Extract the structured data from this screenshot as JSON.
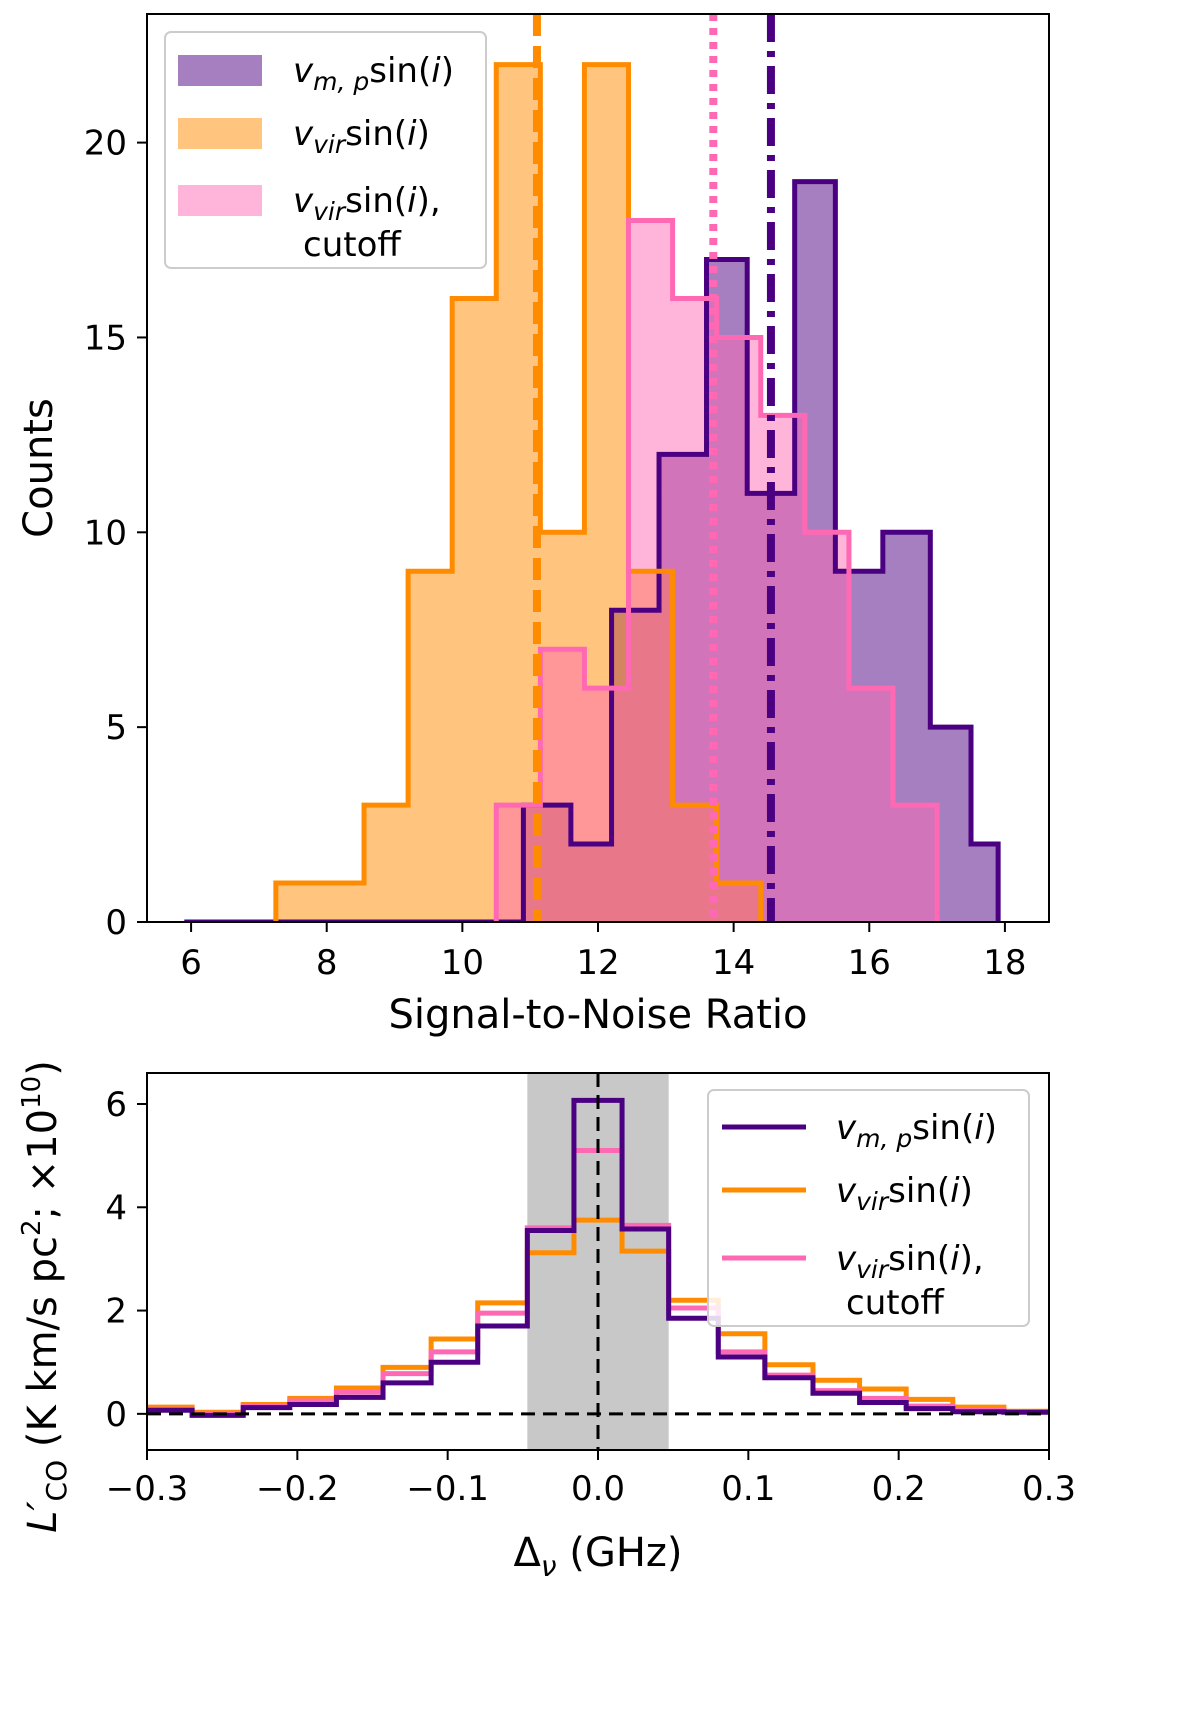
{
  "chart_data": [
    {
      "type": "histogram",
      "xlabel": "Signal-to-Noise Ratio",
      "ylabel": "Counts",
      "xlim": [
        5.35,
        18.65
      ],
      "ylim": [
        0,
        23.3
      ],
      "xticks": [
        6,
        8,
        10,
        12,
        14,
        16,
        18
      ],
      "yticks": [
        0,
        5,
        10,
        15,
        20
      ],
      "legend_position": "top-left",
      "series": [
        {
          "name": "v_{m,p} sin(i)",
          "legend_main": "v",
          "legend_sub": "m, p",
          "legend_rest": "sin(",
          "legend_ital": "i",
          "legend_close": ")",
          "legend_line2": "",
          "color": "#4b0082",
          "fill": "#4b0082",
          "fill_opacity": 0.5,
          "edges": [
            5.9,
            6.6,
            7.3,
            8.0,
            8.6,
            9.3,
            10.0,
            10.9,
            11.6,
            12.2,
            12.9,
            13.6,
            14.2,
            14.9,
            15.5,
            16.2,
            16.9,
            17.5,
            17.9
          ],
          "counts": [
            0,
            0,
            0,
            0,
            0,
            0,
            0,
            3,
            2,
            8,
            12,
            17,
            11,
            19,
            9,
            10,
            5,
            2
          ]
        },
        {
          "name": "v_{vir} sin(i)",
          "legend_main": "v",
          "legend_sub": "vir",
          "legend_rest": "sin(",
          "legend_ital": "i",
          "legend_close": ")",
          "legend_line2": "",
          "color": "#ff8c00",
          "fill": "#ff8c00",
          "fill_opacity": 0.5,
          "edges": [
            7.25,
            7.9,
            8.55,
            9.2,
            9.85,
            10.5,
            11.15,
            11.8,
            12.45,
            13.1,
            13.75,
            14.4
          ],
          "counts": [
            1,
            1,
            3,
            9,
            16,
            22,
            10,
            22,
            9,
            3,
            1
          ]
        },
        {
          "name": "v_{vir} sin(i), cutoff",
          "legend_main": "v",
          "legend_sub": "vir",
          "legend_rest": "sin(",
          "legend_ital": "i",
          "legend_close": "),",
          "legend_line2": "cutoff",
          "color": "#ff69b4",
          "fill": "#ff69b4",
          "fill_opacity": 0.5,
          "edges": [
            10.5,
            11.15,
            11.8,
            12.45,
            13.1,
            13.75,
            14.4,
            15.05,
            15.7,
            16.35,
            17.0
          ],
          "counts": [
            3,
            7,
            6,
            18,
            16,
            15,
            13,
            10,
            6,
            3
          ]
        }
      ],
      "vlines": [
        {
          "x": 11.1,
          "color": "#ff8c00",
          "style": "dashed"
        },
        {
          "x": 13.7,
          "color": "#ff69b4",
          "style": "dotted"
        },
        {
          "x": 14.55,
          "color": "#4b0082",
          "style": "dashdot"
        }
      ]
    },
    {
      "type": "line",
      "xlabel_main": "Δ",
      "xlabel_sub": "ν",
      "xlabel_rest": " (GHz)",
      "ylabel_main": "L′",
      "ylabel_sub": "CO",
      "ylabel_unit": " (K km/s pc",
      "ylabel_sup1": "2",
      "ylabel_mid": "; ×10",
      "ylabel_sup2": "10",
      "ylabel_close": ")",
      "xlim": [
        -0.3,
        0.3
      ],
      "ylim": [
        -0.7,
        6.6
      ],
      "xticks": [
        -0.3,
        -0.2,
        -0.1,
        0.0,
        0.1,
        0.2,
        0.3
      ],
      "xtick_labels": [
        "−0.3",
        "−0.2",
        "−0.1",
        "0.0",
        "0.1",
        "0.2",
        "0.3"
      ],
      "yticks": [
        0,
        2,
        4,
        6
      ],
      "shaded_band": [
        -0.047,
        0.047
      ],
      "hline_y": 0,
      "vline_x": 0,
      "legend_position": "upper-right",
      "step_edges": [
        -0.3,
        -0.27,
        -0.236,
        -0.205,
        -0.174,
        -0.143,
        -0.111,
        -0.08,
        -0.047,
        -0.016,
        0.016,
        0.047,
        0.08,
        0.111,
        0.143,
        0.174,
        0.205,
        0.236,
        0.27,
        0.3
      ],
      "series": [
        {
          "name": "v_{vir} sin(i)",
          "legend_main": "v",
          "legend_sub": "vir",
          "legend_rest": "sin(",
          "legend_ital": "i",
          "legend_close": ")",
          "legend_line2": "",
          "color": "#ff8c00",
          "values": [
            0.13,
            0.03,
            0.18,
            0.3,
            0.5,
            0.9,
            1.45,
            2.15,
            3.12,
            3.75,
            3.15,
            2.2,
            1.55,
            0.95,
            0.65,
            0.48,
            0.28,
            0.13,
            0.05
          ]
        },
        {
          "name": "v_{vir} sin(i), cutoff",
          "legend_main": "v",
          "legend_sub": "vir",
          "legend_rest": "sin(",
          "legend_ital": "i",
          "legend_close": "),",
          "legend_line2": "cutoff",
          "color": "#ff69b4",
          "values": [
            0.09,
            0.01,
            0.16,
            0.25,
            0.42,
            0.78,
            1.2,
            1.95,
            3.6,
            5.1,
            3.65,
            2.05,
            1.2,
            0.75,
            0.45,
            0.3,
            0.15,
            0.07,
            0.04
          ]
        },
        {
          "name": "v_{m,p} sin(i)",
          "legend_main": "v",
          "legend_sub": "m, p",
          "legend_rest": "sin(",
          "legend_ital": "i",
          "legend_close": ")",
          "legend_line2": "",
          "color": "#4b0082",
          "values": [
            0.07,
            -0.03,
            0.12,
            0.18,
            0.32,
            0.6,
            1.0,
            1.7,
            3.55,
            6.07,
            3.58,
            1.85,
            1.1,
            0.7,
            0.4,
            0.22,
            0.1,
            0.04,
            0.03
          ]
        }
      ],
      "legend_order": [
        2,
        0,
        1
      ]
    }
  ]
}
